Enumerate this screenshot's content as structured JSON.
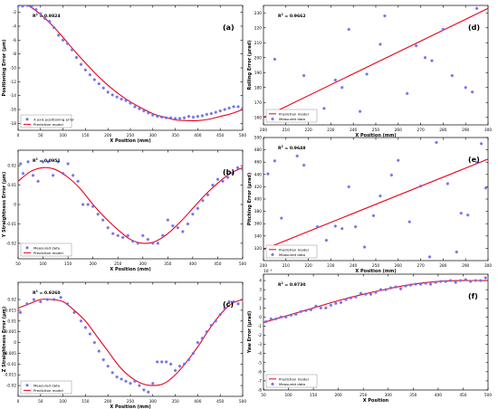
{
  "colors": {
    "model": "#e8001c",
    "measured": "#6f6fe6",
    "axis": "#000000"
  },
  "chart_data": [
    {
      "panel": "a",
      "type": "scatter",
      "label": "(a)",
      "r2": "0.9824",
      "xlabel": "X Position (mm)",
      "ylabel": "Positioning Error (µm)",
      "xlim": [
        0,
        500
      ],
      "ylim": [
        -19,
        -1
      ],
      "xticks": [
        0,
        50,
        100,
        150,
        200,
        250,
        300,
        350,
        400,
        450,
        500
      ],
      "xtick_labels": [
        "0",
        "50",
        "100",
        "150",
        "200",
        "250",
        "300",
        "350",
        "400",
        "450",
        "500"
      ],
      "yticks": [
        -18,
        -16,
        -14,
        -12,
        -10,
        -8,
        -6,
        -4,
        -2
      ],
      "ytick_labels": [
        "-18",
        "-16",
        "-14",
        "-12",
        "-10",
        "-8",
        "-6",
        "-4",
        "-2"
      ],
      "legend": "bottom-left",
      "series": [
        {
          "name": "X axis positioning error",
          "kind": "markers",
          "x": [
            0,
            10,
            20,
            30,
            40,
            50,
            60,
            70,
            80,
            90,
            100,
            110,
            120,
            130,
            140,
            150,
            160,
            170,
            180,
            190,
            200,
            210,
            220,
            230,
            240,
            250,
            260,
            270,
            280,
            290,
            300,
            310,
            320,
            330,
            340,
            350,
            360,
            370,
            380,
            390,
            400,
            410,
            420,
            430,
            440,
            450,
            460,
            470,
            480,
            490,
            500
          ],
          "y": [
            -1.1,
            -1.1,
            -1.0,
            -1.2,
            -1.6,
            -2.2,
            -2.9,
            -3.3,
            -4.2,
            -5.3,
            -6.0,
            -6.5,
            -7.4,
            -8.5,
            -9.5,
            -10.3,
            -11.0,
            -11.7,
            -12.3,
            -12.9,
            -13.5,
            -13.9,
            -14.2,
            -14.5,
            -14.7,
            -15.1,
            -15.6,
            -15.9,
            -16.2,
            -16.5,
            -16.8,
            -17.0,
            -17.1,
            -17.2,
            -17.2,
            -17.3,
            -17.3,
            -17.2,
            -17.0,
            -17.1,
            -17.0,
            -16.9,
            -16.7,
            -16.6,
            -16.4,
            -16.2,
            -16.0,
            -15.8,
            -15.6,
            -15.6,
            -15.8
          ]
        },
        {
          "name": "Prediction model",
          "kind": "line",
          "x": [
            0,
            25,
            50,
            75,
            100,
            125,
            150,
            175,
            200,
            225,
            250,
            275,
            300,
            325,
            350,
            375,
            400,
            425,
            450,
            475,
            500
          ],
          "y": [
            -0.3,
            -1.1,
            -2.3,
            -3.8,
            -5.6,
            -7.5,
            -9.3,
            -11.0,
            -12.5,
            -13.8,
            -14.9,
            -15.8,
            -16.6,
            -17.1,
            -17.5,
            -17.6,
            -17.6,
            -17.4,
            -17.0,
            -16.6,
            -16.0
          ]
        }
      ]
    },
    {
      "panel": "d",
      "type": "scatter",
      "label": "(d)",
      "r2": "0.9662",
      "xlabel": "X Position (mm)",
      "ylabel": "Rolling Error (µrad)",
      "xlim": [
        200,
        300
      ],
      "ylim": [
        155,
        235
      ],
      "xticks": [
        200,
        210,
        220,
        230,
        240,
        250,
        260,
        270,
        280,
        290,
        300
      ],
      "xtick_labels": [
        "200",
        "210",
        "220",
        "230",
        "240",
        "250",
        "260",
        "270",
        "280",
        "290",
        "300"
      ],
      "yticks": [
        160,
        170,
        180,
        190,
        200,
        210,
        220,
        230
      ],
      "ytick_labels": [
        "160",
        "170",
        "180",
        "190",
        "200",
        "210",
        "220",
        "230"
      ],
      "legend": "bottom-left",
      "series": [
        {
          "name": "Prediction model",
          "kind": "line",
          "x": [
            200,
            300
          ],
          "y": [
            160,
            233
          ]
        },
        {
          "name": "Measured data",
          "kind": "markers",
          "x": [
            205,
            218,
            227,
            232,
            235,
            238,
            243,
            246,
            252,
            254,
            264,
            268,
            272,
            275,
            280,
            284,
            290,
            293,
            295
          ],
          "y": [
            199,
            188,
            166,
            185,
            180,
            219,
            164,
            189,
            209,
            228,
            176,
            208,
            200,
            198,
            219,
            188,
            180,
            177,
            233
          ]
        }
      ]
    },
    {
      "panel": "b",
      "type": "scatter",
      "label": "(b)",
      "r2": "0.0951",
      "xlabel": "X Position (mm)",
      "ylabel": "Y Straightness Error (µm)",
      "xlim": [
        50,
        500
      ],
      "ylim": [
        -0.028,
        0.028
      ],
      "xticks": [
        50,
        100,
        150,
        200,
        250,
        300,
        350,
        400,
        450,
        500
      ],
      "xtick_labels": [
        "50",
        "100",
        "150",
        "200",
        "250",
        "300",
        "350",
        "400",
        "450",
        "500"
      ],
      "yticks": [
        -0.02,
        -0.01,
        0,
        0.01,
        0.02
      ],
      "ytick_labels": [
        "-0.02",
        "-0.01",
        "0",
        "0.01",
        "0.02"
      ],
      "legend": "bottom-left",
      "series": [
        {
          "name": "Measured data",
          "kind": "markers",
          "x": [
            55,
            60,
            70,
            80,
            90,
            100,
            110,
            120,
            130,
            140,
            150,
            160,
            170,
            180,
            190,
            200,
            210,
            220,
            230,
            240,
            250,
            260,
            270,
            280,
            290,
            300,
            310,
            320,
            330,
            340,
            350,
            360,
            370,
            380,
            390,
            400,
            410,
            420,
            430,
            440,
            450,
            460,
            470,
            480,
            490,
            500
          ],
          "y": [
            0.021,
            0.016,
            0.022,
            0.015,
            0.012,
            0.022,
            0.022,
            0.015,
            0.022,
            0.016,
            0.021,
            0.015,
            0.012,
            0.0,
            0.0,
            -0.001,
            -0.005,
            -0.008,
            -0.012,
            -0.015,
            -0.016,
            -0.017,
            -0.016,
            -0.019,
            -0.02,
            -0.016,
            -0.018,
            -0.02,
            -0.02,
            -0.016,
            -0.008,
            -0.011,
            -0.012,
            -0.014,
            -0.01,
            -0.005,
            -0.002,
            0.002,
            0.005,
            0.01,
            0.013,
            0.012,
            0.014,
            0.016,
            0.019,
            0.018
          ]
        },
        {
          "name": "Prediction model",
          "kind": "line",
          "x": [
            50,
            75,
            100,
            125,
            150,
            175,
            200,
            225,
            250,
            275,
            300,
            325,
            350,
            375,
            400,
            425,
            450,
            475,
            500
          ],
          "y": [
            0.012,
            0.017,
            0.019,
            0.018,
            0.014,
            0.008,
            0.0,
            -0.007,
            -0.013,
            -0.018,
            -0.02,
            -0.019,
            -0.015,
            -0.009,
            -0.002,
            0.005,
            0.011,
            0.016,
            0.019
          ]
        }
      ]
    },
    {
      "panel": "e",
      "type": "scatter",
      "label": "(e)",
      "r2": "0.9648",
      "xlabel": "X Position (mm)",
      "ylabel": "Pitching Error (µrad)",
      "xlim": [
        200,
        300
      ],
      "ylim": [
        300,
        500
      ],
      "xticks": [
        200,
        210,
        220,
        230,
        240,
        250,
        260,
        270,
        280,
        290,
        300
      ],
      "xtick_labels": [
        "200",
        "210",
        "220",
        "230",
        "240",
        "250",
        "260",
        "270",
        "280",
        "290",
        "300"
      ],
      "yticks": [
        320,
        340,
        360,
        380,
        400,
        420,
        440,
        460,
        480,
        500
      ],
      "ytick_labels": [
        "320",
        "340",
        "360",
        "380",
        "400",
        "420",
        "440",
        "460",
        "480",
        "500"
      ],
      "legend": "bottom-left",
      "series": [
        {
          "name": "Prediction model",
          "kind": "line",
          "x": [
            200,
            300
          ],
          "y": [
            318,
            465
          ]
        },
        {
          "name": "Measured data",
          "kind": "markers",
          "x": [
            202,
            205,
            208,
            215,
            218,
            224,
            228,
            232,
            235,
            238,
            241,
            245,
            249,
            252,
            257,
            260,
            265,
            270,
            274,
            277,
            282,
            286,
            288,
            291,
            295,
            297,
            299
          ],
          "y": [
            441,
            462,
            369,
            470,
            455,
            355,
            333,
            356,
            352,
            420,
            355,
            322,
            373,
            405,
            439,
            463,
            363,
            421,
            306,
            492,
            425,
            314,
            377,
            374,
            459,
            490,
            418
          ]
        }
      ]
    },
    {
      "panel": "c",
      "type": "scatter",
      "label": "(c)",
      "r2": "0.9260",
      "xlabel": "X Position (mm)",
      "ylabel": "Z Straightness Error (µm)",
      "xlim": [
        0,
        500
      ],
      "ylim": [
        -0.025,
        0.028
      ],
      "xticks": [
        0,
        50,
        100,
        150,
        200,
        250,
        300,
        350,
        400,
        450,
        500
      ],
      "xtick_labels": [
        "0",
        "50",
        "100",
        "150",
        "200",
        "250",
        "300",
        "350",
        "400",
        "450",
        "500"
      ],
      "yticks": [
        -0.02,
        -0.015,
        -0.01,
        -0.005,
        0,
        0.005,
        0.01,
        0.015,
        0.02
      ],
      "ytick_labels": [
        "-0.02",
        "-0.015",
        "-0.01",
        "-0.005",
        "0",
        "0.005",
        "0.01",
        "0.015",
        "0.02"
      ],
      "legend": "bottom-left",
      "series": [
        {
          "name": "Measured data",
          "kind": "markers",
          "x": [
            5,
            20,
            35,
            50,
            65,
            80,
            95,
            110,
            125,
            140,
            150,
            160,
            170,
            180,
            190,
            200,
            210,
            220,
            230,
            240,
            250,
            260,
            270,
            280,
            290,
            300,
            310,
            320,
            330,
            340,
            350,
            360,
            370,
            380,
            390,
            400,
            410,
            420,
            430,
            440,
            450,
            460,
            470,
            480,
            490
          ],
          "y": [
            0.014,
            0.018,
            0.02,
            0.019,
            0.02,
            0.02,
            0.021,
            0.018,
            0.014,
            0.01,
            0.007,
            0.004,
            0.0,
            -0.004,
            -0.008,
            -0.011,
            -0.014,
            -0.016,
            -0.017,
            -0.018,
            -0.019,
            -0.018,
            -0.02,
            -0.022,
            -0.023,
            -0.019,
            -0.009,
            -0.009,
            -0.009,
            -0.01,
            -0.013,
            -0.011,
            -0.01,
            -0.008,
            -0.005,
            0.0,
            0.002,
            0.005,
            0.008,
            0.01,
            0.013,
            0.016,
            0.019,
            0.019,
            0.018
          ]
        },
        {
          "name": "Prediction model",
          "kind": "line",
          "x": [
            0,
            25,
            50,
            75,
            100,
            125,
            150,
            175,
            200,
            225,
            250,
            275,
            300,
            325,
            350,
            375,
            400,
            425,
            450,
            475,
            500
          ],
          "y": [
            0.016,
            0.018,
            0.02,
            0.02,
            0.019,
            0.015,
            0.01,
            0.003,
            -0.004,
            -0.011,
            -0.016,
            -0.019,
            -0.02,
            -0.019,
            -0.015,
            -0.009,
            -0.002,
            0.006,
            0.013,
            0.018,
            0.02
          ]
        }
      ]
    },
    {
      "panel": "f",
      "type": "scatter",
      "label": "(f)",
      "r2": "0.9730",
      "xlabel": "X Position",
      "ylabel": "Yaw Error (µrad)",
      "xlim": [
        50,
        500
      ],
      "ylim": [
        -8,
        4.7
      ],
      "y_exponent": "10⁻³",
      "xticks": [
        50,
        100,
        150,
        200,
        250,
        300,
        350,
        400,
        450,
        500
      ],
      "xtick_labels": [
        "50",
        "100",
        "150",
        "200",
        "250",
        "300",
        "350",
        "400",
        "450",
        "500"
      ],
      "yticks": [
        -8,
        -7,
        -6,
        -5,
        -4,
        -3,
        -2,
        -1,
        0,
        1,
        2,
        3,
        4
      ],
      "ytick_labels": [
        "-8",
        "-7",
        "-6",
        "-5",
        "-4",
        "-3",
        "-2",
        "-1",
        "0",
        "1",
        "2",
        "3",
        "4"
      ],
      "legend": "bottom-left",
      "series": [
        {
          "name": "Prediction model",
          "kind": "line",
          "x": [
            50,
            100,
            150,
            200,
            250,
            300,
            350,
            400,
            450,
            500
          ],
          "y": [
            -0.6,
            0.2,
            1.0,
            1.8,
            2.5,
            3.1,
            3.6,
            3.9,
            4.0,
            4.0
          ]
        },
        {
          "name": "Measured data",
          "kind": "markers",
          "x": [
            55,
            65,
            75,
            85,
            95,
            105,
            115,
            125,
            135,
            145,
            155,
            165,
            175,
            185,
            195,
            205,
            215,
            225,
            235,
            245,
            255,
            265,
            275,
            285,
            295,
            305,
            315,
            325,
            335,
            345,
            355,
            365,
            375,
            385,
            395,
            405,
            415,
            425,
            435,
            445,
            455,
            465,
            475,
            485,
            495
          ],
          "y": [
            -0.5,
            -0.2,
            -0.2,
            0.0,
            0.0,
            0.2,
            0.3,
            0.6,
            0.7,
            0.8,
            1.2,
            1.0,
            1.0,
            1.3,
            1.5,
            1.6,
            1.9,
            2.1,
            2.2,
            2.6,
            2.5,
            2.5,
            2.7,
            3.0,
            3.0,
            3.2,
            3.3,
            3.1,
            3.4,
            3.5,
            3.6,
            3.6,
            3.7,
            3.6,
            3.8,
            3.9,
            3.9,
            4.0,
            3.8,
            4.0,
            4.1,
            3.9,
            4.0,
            4.0,
            4.3
          ]
        }
      ]
    }
  ]
}
